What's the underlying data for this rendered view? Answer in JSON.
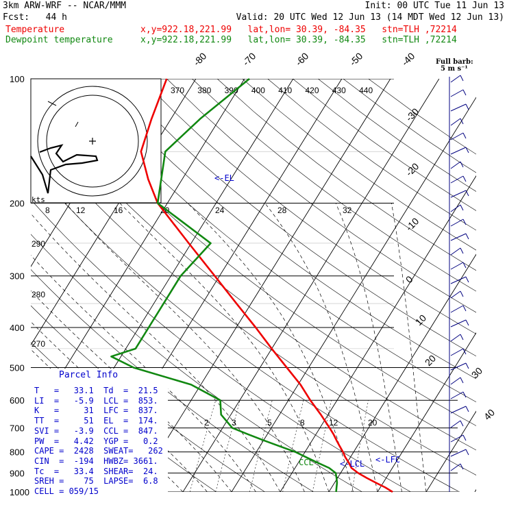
{
  "header": {
    "model": "3km ARW-WRF -- NCAR/MMM",
    "init": "Init: 00 UTC Tue 11 Jun 13",
    "fcst": "Fcst:   44 h",
    "valid": "Valid: 20 UTC Wed 12 Jun 13 (14 MDT Wed 12 Jun 13)",
    "temp_label": "Temperature",
    "dew_label": "Dewpoint temperature",
    "temp_info": "x,y=922.18,221.99   lat,lon= 30.39, -84.35   stn=TLH ,72214",
    "dew_info": "x,y=922.18,221.99   lat,lon= 30.39, -84.35   stn=TLH ,72214"
  },
  "colors": {
    "temperature": "#ee0000",
    "dewpoint": "#118811",
    "panel": "#0000cc",
    "grid": "#000000"
  },
  "barb_legend": [
    "Full barb:",
    "5 m s⁻¹"
  ],
  "hodograph_unit": "kts",
  "parcel_info": {
    "title": "Parcel Info",
    "lines": [
      "T   =   33.1  Td  =  21.5",
      "LI  =   -5.9  LCL =  853.",
      "K   =     31  LFC =  837.",
      "TT  =     51  EL  =  174.",
      "SVI =   -3.9  CCL =  847.",
      "PW  =   4.42  YGP =   0.2",
      "CAPE =  2428  SWEAT=   262",
      "CIN  =  -194  HWBZ= 3661.",
      "Tc  =   33.4  SHEAR=  24.",
      "SREH =    75  LAPSE=  6.8",
      "CELL = 059/15"
    ]
  },
  "level_labels": {
    "el": "<-EL",
    "lfc": "<-LFC",
    "lcl": "<-LCL",
    "ccl": "CCL-"
  },
  "chart_data": {
    "type": "line",
    "y_axis": "pressure (hPa)",
    "pressure_ticks": [
      100,
      200,
      300,
      400,
      500,
      600,
      700,
      800,
      900,
      1000
    ],
    "isotherm_labels": [
      "-80",
      "-70",
      "-60",
      "-50",
      "-40",
      "-30",
      "-20",
      "-10",
      "0",
      "10",
      "20",
      "30",
      "40"
    ],
    "theta_e_labels": [
      "370",
      "380",
      "390",
      "400",
      "410",
      "420",
      "430",
      "440"
    ],
    "theta_e_side_labels": [
      "290",
      "280",
      "270"
    ],
    "hodograph_ring_labels": [
      "8",
      "12",
      "16",
      "20",
      "24",
      "28",
      "32"
    ],
    "mixing_ratio_labels": [
      "2",
      "3",
      "5",
      "8",
      "12",
      "20"
    ],
    "series": [
      {
        "name": "Temperature",
        "p": [
          1000,
          975,
          950,
          925,
          900,
          875,
          850,
          825,
          800,
          775,
          750,
          725,
          700,
          650,
          600,
          550,
          500,
          450,
          400,
          350,
          300,
          250,
          200,
          175,
          150,
          125,
          100
        ],
        "t": [
          33.1,
          31,
          28.5,
          26,
          23.6,
          21.6,
          20.4,
          19,
          17.8,
          16.4,
          15,
          13.6,
          12,
          8.5,
          4.5,
          0.5,
          -4.5,
          -10,
          -16,
          -23,
          -31,
          -40.5,
          -52,
          -57,
          -62,
          -64,
          -66
        ]
      },
      {
        "name": "Dewpoint temperature",
        "p": [
          1000,
          975,
          950,
          925,
          900,
          875,
          850,
          825,
          800,
          775,
          750,
          725,
          700,
          650,
          600,
          550,
          500,
          470,
          450,
          400,
          350,
          300,
          250,
          200,
          150,
          125,
          100
        ],
        "t": [
          21.5,
          21,
          20.5,
          19.8,
          19,
          17,
          14,
          11,
          8,
          4,
          0,
          -4,
          -8,
          -12,
          -14,
          -22,
          -36,
          -42,
          -38,
          -38,
          -38,
          -38,
          -36,
          -52,
          -57,
          -54,
          -49
        ]
      }
    ]
  }
}
